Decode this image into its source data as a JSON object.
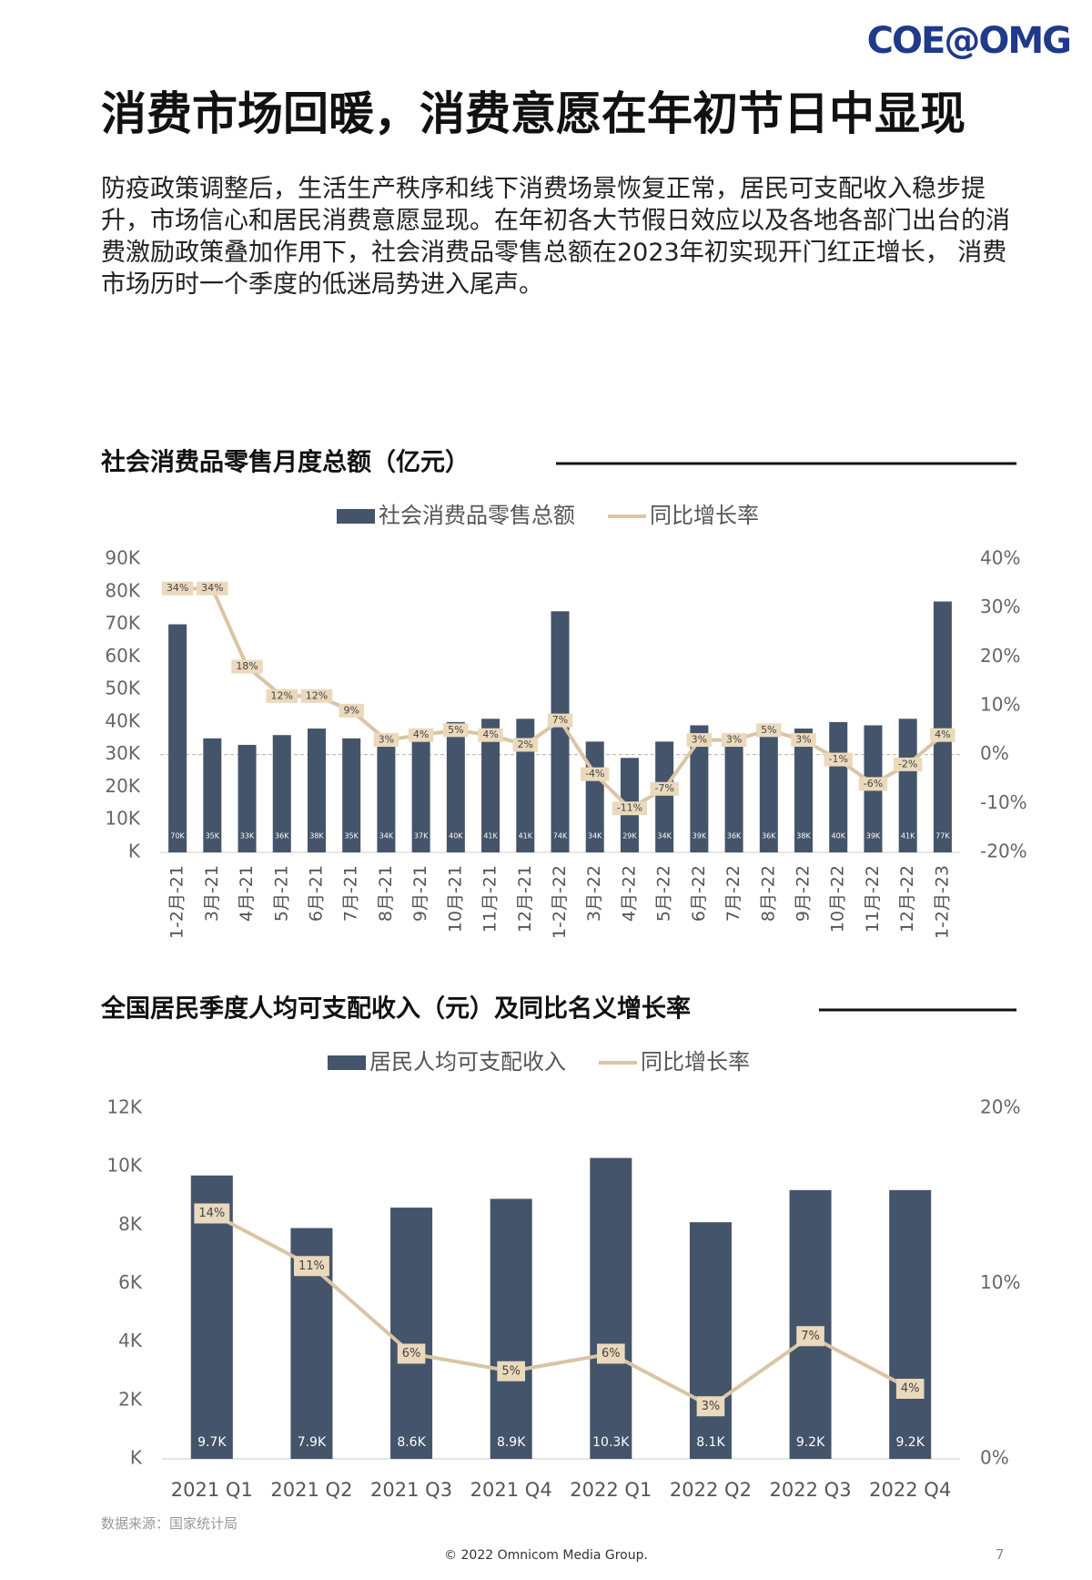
{
  "header": {
    "logo": "COE@OMG",
    "title": "消费市场回暖，消费意愿在年初节日中显现"
  },
  "body": {
    "paragraph": "防疫政策调整后，生活生产秩序和线下消费场景恢复正常，居民可支配收入稳步提升，市场信心和居民消费意愿显现。在年初各大节假日效应以及各地各部门出台的消费激励政策叠加作用下，社会消费品零售总额在2023年初实现开门红正增长， 消费市场历时一个季度的低迷局势进入尾声。"
  },
  "chart_data": [
    {
      "type": "bar",
      "title": "社会消费品零售月度总额（亿元）",
      "categories": [
        "1-2月-21",
        "3月-21",
        "4月-21",
        "5月-21",
        "6月-21",
        "7月-21",
        "8月-21",
        "9月-21",
        "10月-21",
        "11月-21",
        "12月-21",
        "1-2月-22",
        "3月-22",
        "4月-22",
        "5月-22",
        "6月-22",
        "7月-22",
        "8月-22",
        "9月-22",
        "10月-22",
        "11月-22",
        "12月-22",
        "1-2月-23"
      ],
      "series": [
        {
          "name": "社会消费品零售总额",
          "type": "bar",
          "color": "#44546a",
          "values": [
            70000,
            35000,
            33000,
            36000,
            38000,
            35000,
            34000,
            37000,
            40000,
            41000,
            41000,
            74000,
            34000,
            29000,
            34000,
            39000,
            36000,
            36000,
            38000,
            40000,
            39000,
            41000,
            77000
          ],
          "value_labels": [
            "70K",
            "35K",
            "33K",
            "36K",
            "38K",
            "35K",
            "34K",
            "37K",
            "40K",
            "41K",
            "41K",
            "74K",
            "34K",
            "29K",
            "34K",
            "39K",
            "36K",
            "36K",
            "38K",
            "40K",
            "39K",
            "41K",
            "77K"
          ]
        },
        {
          "name": "同比增长率",
          "type": "line",
          "axis": "y2",
          "color": "#d9c5a5",
          "values": [
            34,
            34,
            18,
            12,
            12,
            9,
            3,
            4,
            5,
            4,
            2,
            7,
            -4,
            -11,
            -7,
            3,
            3,
            5,
            3,
            -1,
            -6,
            -2,
            4
          ],
          "value_labels": [
            "34%",
            "34%",
            "18%",
            "12%",
            "12%",
            "9%",
            "3%",
            "4%",
            "5%",
            "4%",
            "2%",
            "7%",
            "-4%",
            "-11%",
            "-7%",
            "3%",
            "3%",
            "5%",
            "3%",
            "-1%",
            "-6%",
            "-2%",
            "4%"
          ]
        }
      ],
      "ylim": [
        0,
        90000
      ],
      "yticks": [
        {
          "value": 0,
          "label": "K"
        },
        {
          "value": 10000,
          "label": "10K"
        },
        {
          "value": 20000,
          "label": "20K"
        },
        {
          "value": 30000,
          "label": "30K"
        },
        {
          "value": 40000,
          "label": "40K"
        },
        {
          "value": 50000,
          "label": "50K"
        },
        {
          "value": 60000,
          "label": "60K"
        },
        {
          "value": 70000,
          "label": "70K"
        },
        {
          "value": 80000,
          "label": "80K"
        },
        {
          "value": 90000,
          "label": "90K"
        }
      ],
      "y2lim": [
        -20,
        40
      ],
      "y2ticks": [
        {
          "value": -20,
          "label": "-20%"
        },
        {
          "value": -10,
          "label": "-10%"
        },
        {
          "value": 0,
          "label": "0%"
        },
        {
          "value": 10,
          "label": "10%"
        },
        {
          "value": 20,
          "label": "20%"
        },
        {
          "value": 30,
          "label": "30%"
        },
        {
          "value": 40,
          "label": "40%"
        }
      ],
      "zero_line": true
    },
    {
      "type": "bar",
      "title": "全国居民季度人均可支配收入（元）及同比名义增长率",
      "categories": [
        "2021 Q1",
        "2021 Q2",
        "2021 Q3",
        "2021 Q4",
        "2022 Q1",
        "2022 Q2",
        "2022 Q3",
        "2022 Q4"
      ],
      "series": [
        {
          "name": "居民人均可支配收入",
          "type": "bar",
          "color": "#44546a",
          "values": [
            9700,
            7900,
            8600,
            8900,
            10300,
            8100,
            9200,
            9200
          ],
          "value_labels": [
            "9.7K",
            "7.9K",
            "8.6K",
            "8.9K",
            "10.3K",
            "8.1K",
            "9.2K",
            "9.2K"
          ]
        },
        {
          "name": "同比增长率",
          "type": "line",
          "axis": "y2",
          "color": "#d9c5a5",
          "values": [
            14,
            11,
            6,
            5,
            6,
            3,
            7,
            4
          ],
          "value_labels": [
            "14%",
            "11%",
            "6%",
            "5%",
            "6%",
            "3%",
            "7%",
            "4%"
          ]
        }
      ],
      "ylim": [
        0,
        12000
      ],
      "yticks": [
        {
          "value": 0,
          "label": "K"
        },
        {
          "value": 2000,
          "label": "2K"
        },
        {
          "value": 4000,
          "label": "4K"
        },
        {
          "value": 6000,
          "label": "6K"
        },
        {
          "value": 8000,
          "label": "8K"
        },
        {
          "value": 10000,
          "label": "10K"
        },
        {
          "value": 12000,
          "label": "12K"
        }
      ],
      "y2lim": [
        0,
        20
      ],
      "y2ticks": [
        {
          "value": 0,
          "label": "0%"
        },
        {
          "value": 10,
          "label": "10%"
        },
        {
          "value": 20,
          "label": "20%"
        }
      ],
      "zero_line": false
    }
  ],
  "footer": {
    "source": "数据来源：国家统计局",
    "copyright": "© 2022 Omnicom Media Group.",
    "page": "7"
  }
}
